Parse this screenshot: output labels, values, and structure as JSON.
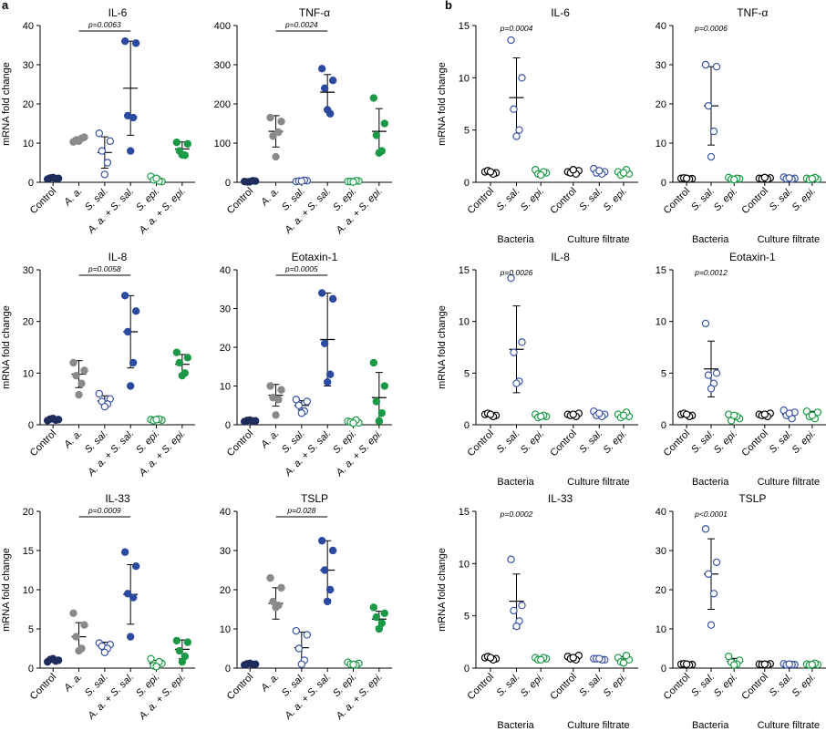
{
  "panel_labels": [
    "a",
    "b"
  ],
  "colors": {
    "control": "#1f2d5c",
    "aa": "#8a8a8a",
    "ssal": "#3a55a4",
    "combo": "#2c4a9f",
    "sepi": "#1a9a46",
    "black": "#000000"
  },
  "chart_data": [
    {
      "type": "scatter",
      "title": "IL-6",
      "ylabel": "mRNA fold change",
      "ylim": [
        0,
        40
      ],
      "yticks": [
        0,
        10,
        20,
        30,
        40
      ],
      "groups": [
        "Control",
        "A. a.",
        "S. sal.",
        "A. a. + S. sal.",
        "S. epi.",
        "A. a. + S. epi."
      ],
      "points": [
        [
          0.8,
          1.0,
          1.1,
          0.9,
          1.2
        ],
        [
          10.3,
          11.5,
          10.8,
          11.2,
          10.5
        ],
        [
          12.5,
          10.5,
          8.0,
          5.0,
          2.0
        ],
        [
          36.0,
          35.5,
          17.0,
          16.5,
          8.0
        ],
        [
          1.5,
          0.2,
          0.6,
          0.3,
          1.0
        ],
        [
          10.2,
          9.8,
          8.0,
          6.9,
          7.0
        ]
      ],
      "mean": [
        1.0,
        10.8,
        7.6,
        24.0,
        0.8,
        8.5
      ],
      "sd": [
        0.2,
        0.6,
        4.0,
        12.0,
        0.7,
        1.8
      ],
      "pvalue": "p=0.0063",
      "p_between": [
        1,
        3
      ]
    },
    {
      "type": "scatter",
      "title": "TNF-α",
      "ylabel": "",
      "ylim": [
        0,
        400
      ],
      "yticks": [
        0,
        100,
        200,
        300,
        400
      ],
      "groups": [
        "Control",
        "A. a.",
        "S. sal.",
        "A. a. + S. sal.",
        "S. epi.",
        "A. a. + S. epi."
      ],
      "points": [
        [
          2,
          3,
          1,
          4,
          2
        ],
        [
          165,
          155,
          118,
          128,
          65
        ],
        [
          2,
          4,
          3,
          5,
          3
        ],
        [
          290,
          260,
          240,
          175,
          185
        ],
        [
          2,
          3,
          2,
          4,
          1
        ],
        [
          215,
          150,
          120,
          80,
          75
        ]
      ],
      "mean": [
        2,
        130,
        3,
        230,
        2,
        130
      ],
      "sd": [
        1,
        40,
        1,
        45,
        1,
        58
      ],
      "pvalue": "p=0.0024",
      "p_between": [
        1,
        3
      ]
    },
    {
      "type": "scatter",
      "title": "IL-8",
      "ylabel": "mRNA fold change",
      "ylim": [
        0,
        30
      ],
      "yticks": [
        0,
        10,
        20,
        30
      ],
      "groups": [
        "Control",
        "A. a.",
        "S. sal.",
        "A. a. + S. sal.",
        "S. epi.",
        "A. a. + S. epi."
      ],
      "points": [
        [
          0.8,
          1.0,
          1.1,
          0.9,
          1.2
        ],
        [
          12.0,
          10.5,
          9.5,
          8.0,
          5.8
        ],
        [
          6.0,
          5.0,
          4.5,
          4.0,
          3.5
        ],
        [
          25.0,
          22.0,
          18.0,
          12.0,
          7.5
        ],
        [
          1.0,
          0.9,
          0.8,
          1.1,
          1.0
        ],
        [
          14.0,
          13.0,
          12.0,
          10.0,
          9.5
        ]
      ],
      "mean": [
        1.0,
        9.8,
        4.6,
        18.0,
        1.0,
        11.7
      ],
      "sd": [
        0.2,
        2.6,
        1.0,
        7.0,
        0.1,
        1.9
      ],
      "pvalue": "p=0.0058",
      "p_between": [
        1,
        3
      ]
    },
    {
      "type": "scatter",
      "title": "Eotaxin-1",
      "ylabel": "",
      "ylim": [
        0,
        40
      ],
      "yticks": [
        0,
        10,
        20,
        30,
        40
      ],
      "groups": [
        "Control",
        "A. a.",
        "S. sal.",
        "A. a. + S. sal.",
        "S. epi.",
        "A. a. + S. epi."
      ],
      "points": [
        [
          0.8,
          1.0,
          1.1,
          0.9,
          1.2
        ],
        [
          10.0,
          9.0,
          7.0,
          6.5,
          2.5
        ],
        [
          6.5,
          6.0,
          5.0,
          3.5,
          3.0
        ],
        [
          34.0,
          32.5,
          21.0,
          13.0,
          11.0
        ],
        [
          0.9,
          0.5,
          0.7,
          1.2,
          0.4
        ],
        [
          16.0,
          10.0,
          6.0,
          3.0,
          1.0
        ]
      ],
      "mean": [
        1.0,
        7.6,
        5.0,
        22.0,
        0.7,
        7.0
      ],
      "sd": [
        0.2,
        2.8,
        1.2,
        12.0,
        0.3,
        6.5
      ],
      "pvalue": "p=0.0005",
      "p_between": [
        1,
        3
      ]
    },
    {
      "type": "scatter",
      "title": "IL-33",
      "ylabel": "mRNA fold change",
      "ylim": [
        0,
        20
      ],
      "yticks": [
        0,
        5,
        10,
        15,
        20
      ],
      "groups": [
        "Control",
        "A. a.",
        "S. sal.",
        "A. a. + S. sal.",
        "S. epi.",
        "A. a. + S. epi."
      ],
      "points": [
        [
          0.8,
          1.0,
          1.1,
          0.9,
          1.2
        ],
        [
          7.0,
          5.5,
          4.0,
          2.5,
          2.2
        ],
        [
          3.2,
          3.0,
          2.8,
          2.5,
          2.0
        ],
        [
          14.8,
          13.0,
          9.5,
          9.0,
          4.0
        ],
        [
          1.2,
          0.6,
          0.3,
          0.8,
          0.2
        ],
        [
          3.5,
          3.3,
          2.2,
          1.5,
          0.8
        ]
      ],
      "mean": [
        1.0,
        4.0,
        2.8,
        9.4,
        0.6,
        2.4
      ],
      "sd": [
        0.2,
        1.8,
        0.5,
        3.8,
        0.4,
        1.2
      ],
      "pvalue": "p=0.0009",
      "p_between": [
        1,
        3
      ]
    },
    {
      "type": "scatter",
      "title": "TSLP",
      "ylabel": "",
      "ylim": [
        0,
        40
      ],
      "yticks": [
        0,
        10,
        20,
        30,
        40
      ],
      "groups": [
        "Control",
        "A. a.",
        "S. sal.",
        "A. a. + S. sal.",
        "S. epi.",
        "A. a. + S. epi."
      ],
      "points": [
        [
          0.8,
          1.0,
          1.1,
          0.9,
          1.2
        ],
        [
          23.0,
          20.5,
          17.0,
          16.0,
          15.5
        ],
        [
          9.5,
          8.5,
          5.0,
          2.0,
          1.0
        ],
        [
          32.5,
          30.0,
          25.0,
          20.0,
          17.0
        ],
        [
          1.5,
          1.2,
          1.0,
          0.8,
          0.9
        ],
        [
          15.5,
          14.0,
          13.0,
          11.5,
          10.0
        ]
      ],
      "mean": [
        1.0,
        16.5,
        5.2,
        25.0,
        1.1,
        12.5
      ],
      "sd": [
        0.2,
        4.0,
        4.0,
        7.5,
        0.3,
        2.0
      ],
      "pvalue": "p=0.028",
      "p_between": [
        1,
        3
      ]
    },
    {
      "type": "scatter",
      "title": "IL-6",
      "ylabel": "mRNA fold change",
      "ylim": [
        0,
        15
      ],
      "yticks": [
        0,
        5,
        10,
        15
      ],
      "groups": [
        "Control",
        "S. sal.",
        "S. epi.",
        "Control",
        "S. sal.",
        "S. epi."
      ],
      "group_sections": [
        "Bacteria",
        "Culture filtrate"
      ],
      "points": [
        [
          1.0,
          0.9,
          1.1,
          0.8,
          1.0
        ],
        [
          13.6,
          10.0,
          7.0,
          5.0,
          4.4
        ],
        [
          1.2,
          0.9,
          0.8,
          1.0,
          0.7
        ],
        [
          1.0,
          1.1,
          0.9,
          0.8,
          1.2
        ],
        [
          1.3,
          1.0,
          0.9,
          0.8,
          1.1
        ],
        [
          1.0,
          0.8,
          0.7,
          1.2,
          0.9
        ]
      ],
      "mean": [
        1.0,
        8.1,
        0.9,
        1.0,
        1.0,
        0.9
      ],
      "sd": [
        0.1,
        3.8,
        0.2,
        0.1,
        0.2,
        0.2
      ],
      "pvalue": "p=0.0004",
      "p_group": 1
    },
    {
      "type": "scatter",
      "title": "TNF-α",
      "ylabel": "",
      "ylim": [
        0,
        40
      ],
      "yticks": [
        0,
        10,
        20,
        30,
        40
      ],
      "groups": [
        "Control",
        "S. sal.",
        "S. epi.",
        "Control",
        "S. sal.",
        "S. epi."
      ],
      "group_sections": [
        "Bacteria",
        "Culture filtrate"
      ],
      "points": [
        [
          1.0,
          0.9,
          1.1,
          0.8,
          1.0
        ],
        [
          30.0,
          29.5,
          19.5,
          13.0,
          6.5
        ],
        [
          1.2,
          0.9,
          0.8,
          1.0,
          0.7
        ],
        [
          1.0,
          1.1,
          0.9,
          0.8,
          1.2
        ],
        [
          1.3,
          1.0,
          0.9,
          0.8,
          1.1
        ],
        [
          1.0,
          0.8,
          0.7,
          1.2,
          0.9
        ]
      ],
      "mean": [
        1.0,
        19.5,
        1.0,
        1.0,
        1.0,
        0.9
      ],
      "sd": [
        0.1,
        10.0,
        0.2,
        0.1,
        0.2,
        0.2
      ],
      "pvalue": "p=0.0006",
      "p_group": 1
    },
    {
      "type": "scatter",
      "title": "IL-8",
      "ylabel": "mRNA fold change",
      "ylim": [
        0,
        15
      ],
      "yticks": [
        0,
        5,
        10,
        15
      ],
      "groups": [
        "Control",
        "S. sal.",
        "S. epi.",
        "Control",
        "S. sal.",
        "S. epi."
      ],
      "group_sections": [
        "Bacteria",
        "Culture filtrate"
      ],
      "points": [
        [
          1.0,
          0.9,
          1.1,
          0.8,
          1.0
        ],
        [
          14.2,
          8.0,
          7.0,
          4.2,
          4.0
        ],
        [
          1.0,
          0.8,
          0.7,
          0.9,
          0.8
        ],
        [
          1.0,
          1.1,
          0.9,
          0.8,
          1.0
        ],
        [
          1.3,
          1.0,
          0.9,
          0.8,
          1.1
        ],
        [
          1.0,
          0.8,
          0.7,
          1.2,
          0.9
        ]
      ],
      "mean": [
        1.0,
        7.3,
        0.8,
        1.0,
        1.0,
        0.9
      ],
      "sd": [
        0.1,
        4.2,
        0.2,
        0.1,
        0.2,
        0.2
      ],
      "pvalue": "p=0.0026",
      "p_group": 1
    },
    {
      "type": "scatter",
      "title": "Eotaxin-1",
      "ylabel": "",
      "ylim": [
        0,
        15
      ],
      "yticks": [
        0,
        5,
        10,
        15
      ],
      "groups": [
        "Control",
        "S. sal.",
        "S. epi.",
        "Control",
        "S. sal.",
        "S. epi."
      ],
      "group_sections": [
        "Bacteria",
        "Culture filtrate"
      ],
      "points": [
        [
          1.0,
          0.9,
          1.1,
          0.8,
          1.0
        ],
        [
          9.8,
          5.0,
          4.8,
          4.0,
          3.5
        ],
        [
          1.0,
          0.6,
          0.4,
          0.8,
          0.9
        ],
        [
          1.0,
          1.1,
          0.9,
          0.8,
          1.0
        ],
        [
          1.4,
          1.2,
          0.9,
          0.6,
          1.1
        ],
        [
          1.3,
          1.2,
          0.8,
          0.6,
          0.9
        ]
      ],
      "mean": [
        1.0,
        5.4,
        0.8,
        1.0,
        1.0,
        1.0
      ],
      "sd": [
        0.1,
        2.7,
        0.3,
        0.1,
        0.3,
        0.3
      ],
      "pvalue": "p=0.0012",
      "p_group": 1
    },
    {
      "type": "scatter",
      "title": "IL-33",
      "ylabel": "mRNA fold change",
      "ylim": [
        0,
        15
      ],
      "yticks": [
        0,
        5,
        10,
        15
      ],
      "groups": [
        "Control",
        "S. sal.",
        "S. epi.",
        "Control",
        "S. sal.",
        "S. epi."
      ],
      "group_sections": [
        "Bacteria",
        "Culture filtrate"
      ],
      "points": [
        [
          1.0,
          0.9,
          1.1,
          0.8,
          1.0
        ],
        [
          10.4,
          6.0,
          5.5,
          4.5,
          4.0
        ],
        [
          1.0,
          0.9,
          0.8,
          1.0,
          0.8
        ],
        [
          1.1,
          1.2,
          0.9,
          0.8,
          1.0
        ],
        [
          0.9,
          0.8,
          0.9,
          0.8,
          0.9
        ],
        [
          1.0,
          0.8,
          0.6,
          1.2,
          0.5
        ]
      ],
      "mean": [
        1.0,
        6.4,
        0.9,
        1.0,
        0.9,
        0.8
      ],
      "sd": [
        0.1,
        2.6,
        0.1,
        0.2,
        0.1,
        0.3
      ],
      "pvalue": "p=0.0002",
      "p_group": 1
    },
    {
      "type": "scatter",
      "title": "TSLP",
      "ylabel": "",
      "ylim": [
        0,
        40
      ],
      "yticks": [
        0,
        10,
        20,
        30,
        40
      ],
      "groups": [
        "Control",
        "S. sal.",
        "S. epi.",
        "Control",
        "S. sal.",
        "S. epi."
      ],
      "group_sections": [
        "Bacteria",
        "Culture filtrate"
      ],
      "points": [
        [
          1.0,
          0.9,
          1.1,
          0.8,
          1.0
        ],
        [
          35.5,
          27.0,
          24.0,
          19.0,
          11.0
        ],
        [
          3.0,
          2.0,
          1.5,
          1.0,
          0.8
        ],
        [
          1.0,
          1.1,
          0.9,
          0.8,
          1.0
        ],
        [
          1.1,
          0.9,
          0.8,
          0.9,
          1.0
        ],
        [
          1.0,
          0.9,
          0.8,
          1.2,
          0.9
        ]
      ],
      "mean": [
        1.0,
        24.0,
        1.7,
        1.0,
        0.9,
        1.0
      ],
      "sd": [
        0.1,
        9.0,
        0.8,
        0.1,
        0.1,
        0.2
      ],
      "pvalue": "p<0.0001",
      "p_group": 1
    }
  ]
}
